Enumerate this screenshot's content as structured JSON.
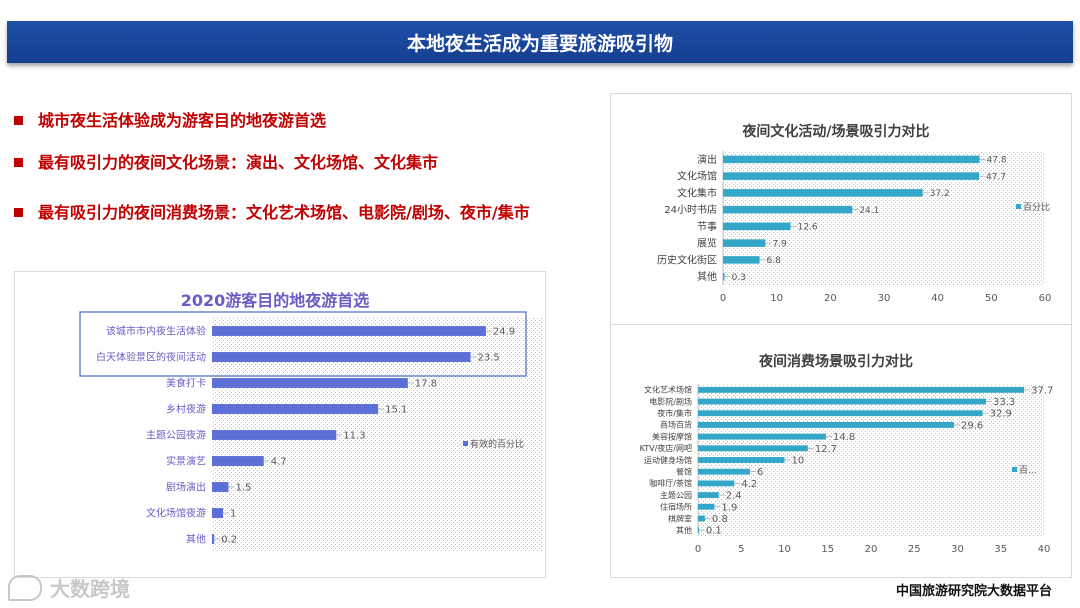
{
  "slide": {
    "title": "本地夜生活成为重要旅游吸引物",
    "bullets": [
      "城市夜生活体验成为游客目的地夜游首选",
      "最有吸引力的夜间文化场景：演出、文化场馆、文化集市",
      "最有吸引力的夜间消费场景：文化艺术场馆、电影院/剧场、夜市/集市"
    ],
    "source": "中国旅游研究院大数据平台",
    "logo_text": "大数跨境"
  },
  "colors": {
    "title_bg": "#1a4699",
    "bullet_red": "#c00000",
    "bar_blue": "#5b6fd6",
    "bar_cyan": "#34a7c8",
    "highlight_box": "#4a6cc2"
  },
  "chart_data": [
    {
      "id": "left",
      "type": "bar",
      "orientation": "horizontal",
      "title": "2020游客目的地夜游首选",
      "categories": [
        "该城市市内夜生活体验",
        "白天体验景区的夜间活动",
        "美食打卡",
        "乡村夜游",
        "主题公园夜游",
        "实景演艺",
        "剧场演出",
        "文化场馆夜游",
        "其他"
      ],
      "values": [
        24.9,
        23.5,
        17.8,
        15.1,
        11.3,
        4.7,
        1.5,
        1,
        0.2
      ],
      "xlim": [
        0,
        30
      ],
      "legend": "有效的百分比",
      "legend_position": "right",
      "highlighted_categories": [
        0,
        1
      ]
    },
    {
      "id": "right-top",
      "type": "bar",
      "orientation": "horizontal",
      "title": "夜间文化活动/场景吸引力对比",
      "categories": [
        "演出",
        "文化场馆",
        "文化集市",
        "24小时书店",
        "节事",
        "展览",
        "历史文化街区",
        "其他"
      ],
      "values": [
        47.8,
        47.7,
        37.2,
        24.1,
        12.6,
        7.9,
        6.8,
        0.3
      ],
      "xlim": [
        0,
        60
      ],
      "xticks": [
        0,
        10,
        20,
        30,
        40,
        50,
        60
      ],
      "legend": "百分比",
      "legend_position": "right"
    },
    {
      "id": "right-bottom",
      "type": "bar",
      "orientation": "horizontal",
      "title": "夜间消费场景吸引力对比",
      "categories": [
        "文化艺术场馆",
        "电影院/剧场",
        "夜市/集市",
        "商场百货",
        "美容按摩馆",
        "KTV/夜店/网吧",
        "运动健身场馆",
        "餐馆",
        "咖啡厅/茶馆",
        "主题公园",
        "住宿场所",
        "棋牌室",
        "其他"
      ],
      "values": [
        37.7,
        33.3,
        32.9,
        29.6,
        14.8,
        12.7,
        10,
        6,
        4.2,
        2.4,
        1.9,
        0.8,
        0.1
      ],
      "xlim": [
        0,
        40
      ],
      "xticks": [
        0,
        5,
        10,
        15,
        20,
        25,
        30,
        35,
        40
      ],
      "legend": "百...",
      "legend_position": "right"
    }
  ]
}
